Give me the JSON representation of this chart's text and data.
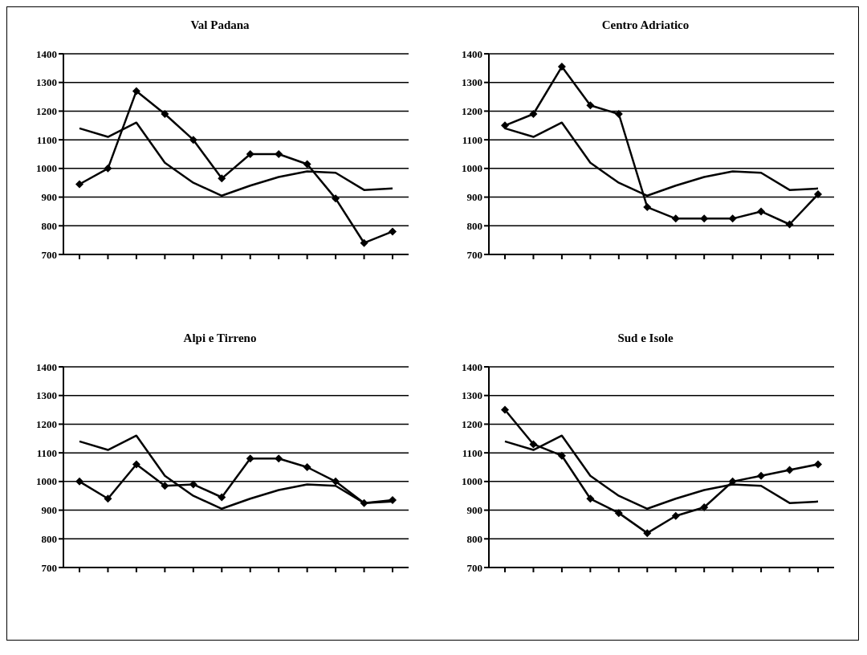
{
  "chart_data": [
    {
      "type": "line",
      "title": "Val Padana",
      "categories": [
        null,
        null,
        null,
        null,
        null,
        null,
        null,
        null,
        null,
        null,
        null,
        null
      ],
      "ylim": [
        700,
        1400
      ],
      "yticks": [
        700,
        800,
        900,
        1000,
        1100,
        1200,
        1300,
        1400
      ],
      "grid": "y",
      "series": [
        {
          "color": "#000000",
          "marker": "none",
          "values": [
            1140,
            1110,
            1160,
            1020,
            950,
            905,
            940,
            970,
            990,
            985,
            925,
            930
          ]
        },
        {
          "color": "#000000",
          "marker": "diamond",
          "values": [
            945,
            1000,
            1270,
            1190,
            1100,
            965,
            1050,
            1050,
            1015,
            895,
            740,
            780
          ]
        }
      ]
    },
    {
      "type": "line",
      "title": "Centro Adriatico",
      "categories": [
        null,
        null,
        null,
        null,
        null,
        null,
        null,
        null,
        null,
        null,
        null,
        null
      ],
      "ylim": [
        700,
        1400
      ],
      "yticks": [
        700,
        800,
        900,
        1000,
        1100,
        1200,
        1300,
        1400
      ],
      "grid": "y",
      "series": [
        {
          "color": "#000000",
          "marker": "none",
          "values": [
            1140,
            1110,
            1160,
            1020,
            950,
            905,
            940,
            970,
            990,
            985,
            925,
            930
          ]
        },
        {
          "color": "#000000",
          "marker": "diamond",
          "values": [
            1150,
            1190,
            1355,
            1220,
            1190,
            865,
            825,
            825,
            825,
            850,
            805,
            910
          ]
        }
      ]
    },
    {
      "type": "line",
      "title": "Alpi e Tirreno",
      "categories": [
        null,
        null,
        null,
        null,
        null,
        null,
        null,
        null,
        null,
        null,
        null,
        null
      ],
      "ylim": [
        700,
        1400
      ],
      "yticks": [
        700,
        800,
        900,
        1000,
        1100,
        1200,
        1300,
        1400
      ],
      "grid": "y",
      "series": [
        {
          "color": "#000000",
          "marker": "none",
          "values": [
            1140,
            1110,
            1160,
            1020,
            950,
            905,
            940,
            970,
            990,
            985,
            925,
            930
          ]
        },
        {
          "color": "#000000",
          "marker": "diamond",
          "values": [
            1000,
            940,
            1060,
            985,
            990,
            945,
            1080,
            1080,
            1050,
            1000,
            925,
            935
          ]
        }
      ]
    },
    {
      "type": "line",
      "title": "Sud e Isole",
      "categories": [
        null,
        null,
        null,
        null,
        null,
        null,
        null,
        null,
        null,
        null,
        null,
        null
      ],
      "ylim": [
        700,
        1400
      ],
      "yticks": [
        700,
        800,
        900,
        1000,
        1100,
        1200,
        1300,
        1400
      ],
      "grid": "y",
      "series": [
        {
          "color": "#000000",
          "marker": "none",
          "values": [
            1140,
            1110,
            1160,
            1020,
            950,
            905,
            940,
            970,
            990,
            985,
            925,
            930
          ]
        },
        {
          "color": "#000000",
          "marker": "diamond",
          "values": [
            1250,
            1130,
            1090,
            940,
            890,
            820,
            880,
            910,
            1000,
            1020,
            1040,
            1060
          ]
        }
      ]
    }
  ]
}
